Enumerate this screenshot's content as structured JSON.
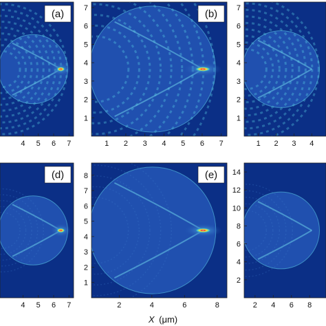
{
  "figure": {
    "xlabel_italic": "X",
    "xlabel_unit": "(μm)",
    "colors": {
      "background": "#0b2f86",
      "field": "#2456b6",
      "ring": "#4fb0d8",
      "hot": "#e8342a",
      "warm": "#f7e43a"
    }
  },
  "chart_data": [
    {
      "panel": "a",
      "label": "(a)",
      "type": "heatmap",
      "x_ticks": [
        "4",
        "5",
        "6",
        "7"
      ],
      "y_ticks": [],
      "xlim": [
        2.5,
        7.3
      ],
      "ylim": [
        0,
        7.3
      ]
    },
    {
      "panel": "b",
      "label": "(b)",
      "type": "heatmap",
      "x_ticks": [
        "1",
        "2",
        "3",
        "4",
        "5",
        "6",
        "7"
      ],
      "y_ticks": [
        "1",
        "2",
        "3",
        "4",
        "5",
        "6",
        "7"
      ],
      "xlim": [
        0.2,
        7.3
      ],
      "ylim": [
        0,
        7.3
      ]
    },
    {
      "panel": "c",
      "label": "",
      "type": "heatmap",
      "x_ticks": [
        "1",
        "2",
        "3",
        "4"
      ],
      "y_ticks": [
        "1",
        "2",
        "3",
        "4",
        "5",
        "6",
        "7"
      ],
      "xlim": [
        0.2,
        4.8
      ],
      "ylim": [
        0,
        7.3
      ]
    },
    {
      "panel": "d",
      "label": "(d)",
      "type": "heatmap",
      "x_ticks": [
        "4",
        "5",
        "6",
        "7"
      ],
      "y_ticks": [],
      "xlim": [
        2.5,
        7.3
      ],
      "ylim": [
        0,
        8.8
      ]
    },
    {
      "panel": "e",
      "label": "(e)",
      "type": "heatmap",
      "x_ticks": [
        "2",
        "4",
        "6",
        "8"
      ],
      "y_ticks": [
        "1",
        "2",
        "3",
        "4",
        "5",
        "6",
        "7",
        "8"
      ],
      "xlim": [
        0.3,
        8.6
      ],
      "ylim": [
        0,
        8.8
      ]
    },
    {
      "panel": "f",
      "label": "",
      "type": "heatmap",
      "x_ticks": [
        "2",
        "4",
        "6",
        "8"
      ],
      "y_ticks": [
        "2",
        "4",
        "6",
        "8",
        "10",
        "12",
        "14"
      ],
      "xlim": [
        0.8,
        9.8
      ],
      "ylim": [
        0,
        15
      ]
    }
  ]
}
